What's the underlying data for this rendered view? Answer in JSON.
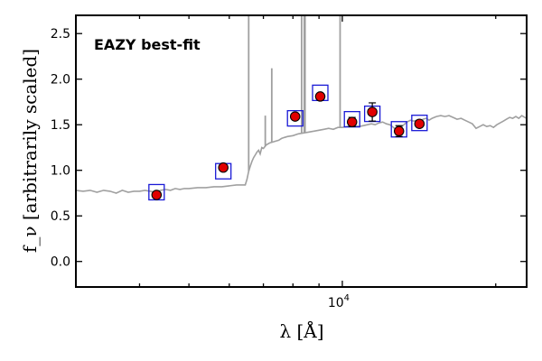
{
  "chart_data": {
    "type": "scatter",
    "title": "",
    "xlabel": "λ [Å]",
    "ylabel": "f_ν [arbitrarily scaled]",
    "xscale": "log",
    "xlim": [
      3000,
      23000
    ],
    "ylim": [
      -0.28,
      2.7
    ],
    "yticks": [
      0.0,
      0.5,
      1.0,
      1.5,
      2.0,
      2.5
    ],
    "ytick_labels": [
      "0.0",
      "0.5",
      "1.0",
      "1.5",
      "2.0",
      "2.5"
    ],
    "xtick_labels": [
      {
        "value": 10000,
        "base": "10",
        "exp": "4"
      }
    ],
    "grid": false,
    "annotation": "EAZY best-fit",
    "colors": {
      "template": "#a0a0a0",
      "observed": "#e00000",
      "model_box": "#1a1ad6",
      "annotation": "#ff0000"
    },
    "observed": [
      {
        "x": 4320,
        "y": 0.73,
        "err": 0.0
      },
      {
        "x": 5840,
        "y": 1.03,
        "err": 0.0
      },
      {
        "x": 8080,
        "y": 1.59,
        "err": 0.0
      },
      {
        "x": 9050,
        "y": 1.81,
        "err": 0.0
      },
      {
        "x": 10450,
        "y": 1.53,
        "err": 0.05
      },
      {
        "x": 11450,
        "y": 1.64,
        "err": 0.1
      },
      {
        "x": 12920,
        "y": 1.43,
        "err": 0.06
      },
      {
        "x": 14170,
        "y": 1.51,
        "err": 0.0
      }
    ],
    "model": [
      {
        "x": 4320,
        "y": 0.76
      },
      {
        "x": 5840,
        "y": 0.99
      },
      {
        "x": 8080,
        "y": 1.57
      },
      {
        "x": 9050,
        "y": 1.85
      },
      {
        "x": 10450,
        "y": 1.56
      },
      {
        "x": 11450,
        "y": 1.62
      },
      {
        "x": 12920,
        "y": 1.45
      },
      {
        "x": 14170,
        "y": 1.52
      }
    ],
    "template": [
      [
        3000,
        0.78
      ],
      [
        3100,
        0.77
      ],
      [
        3200,
        0.78
      ],
      [
        3300,
        0.76
      ],
      [
        3400,
        0.78
      ],
      [
        3500,
        0.77
      ],
      [
        3600,
        0.75
      ],
      [
        3700,
        0.78
      ],
      [
        3800,
        0.76
      ],
      [
        3900,
        0.77
      ],
      [
        4000,
        0.77
      ],
      [
        4100,
        0.78
      ],
      [
        4200,
        0.77
      ],
      [
        4300,
        0.76
      ],
      [
        4400,
        0.78
      ],
      [
        4500,
        0.79
      ],
      [
        4600,
        0.78
      ],
      [
        4700,
        0.8
      ],
      [
        4800,
        0.79
      ],
      [
        4900,
        0.8
      ],
      [
        5000,
        0.8
      ],
      [
        5200,
        0.81
      ],
      [
        5400,
        0.81
      ],
      [
        5600,
        0.82
      ],
      [
        5800,
        0.82
      ],
      [
        6000,
        0.83
      ],
      [
        6200,
        0.84
      ],
      [
        6400,
        0.84
      ],
      [
        6450,
        0.84
      ],
      [
        6500,
        0.9
      ],
      [
        6550,
        0.99
      ],
      [
        6600,
        1.05
      ],
      [
        6650,
        1.1
      ],
      [
        6700,
        1.14
      ],
      [
        6750,
        1.17
      ],
      [
        6800,
        1.2
      ],
      [
        6850,
        1.22
      ],
      [
        6900,
        1.18
      ],
      [
        6950,
        1.25
      ],
      [
        7000,
        1.24
      ],
      [
        7050,
        1.26
      ],
      [
        7100,
        1.28
      ],
      [
        7200,
        1.3
      ],
      [
        7300,
        1.31
      ],
      [
        7400,
        1.32
      ],
      [
        7500,
        1.33
      ],
      [
        7600,
        1.35
      ],
      [
        7700,
        1.36
      ],
      [
        7800,
        1.37
      ],
      [
        8000,
        1.38
      ],
      [
        8200,
        1.4
      ],
      [
        8400,
        1.41
      ],
      [
        8600,
        1.42
      ],
      [
        8800,
        1.43
      ],
      [
        9000,
        1.44
      ],
      [
        9200,
        1.45
      ],
      [
        9400,
        1.46
      ],
      [
        9600,
        1.45
      ],
      [
        9800,
        1.47
      ],
      [
        10000,
        1.47
      ],
      [
        10200,
        1.48
      ],
      [
        10400,
        1.49
      ],
      [
        10600,
        1.49
      ],
      [
        10800,
        1.48
      ],
      [
        11000,
        1.49
      ],
      [
        11200,
        1.5
      ],
      [
        11400,
        1.51
      ],
      [
        11600,
        1.5
      ],
      [
        11800,
        1.52
      ],
      [
        12000,
        1.53
      ],
      [
        12200,
        1.51
      ],
      [
        12400,
        1.5
      ],
      [
        12600,
        1.47
      ],
      [
        12800,
        1.44
      ],
      [
        13000,
        1.46
      ],
      [
        13200,
        1.5
      ],
      [
        13400,
        1.53
      ],
      [
        13600,
        1.55
      ],
      [
        13800,
        1.54
      ],
      [
        14000,
        1.55
      ],
      [
        14200,
        1.53
      ],
      [
        14400,
        1.56
      ],
      [
        14600,
        1.57
      ],
      [
        14800,
        1.55
      ],
      [
        15000,
        1.57
      ],
      [
        15300,
        1.59
      ],
      [
        15600,
        1.6
      ],
      [
        15900,
        1.59
      ],
      [
        16200,
        1.6
      ],
      [
        16500,
        1.58
      ],
      [
        16800,
        1.56
      ],
      [
        17100,
        1.57
      ],
      [
        17400,
        1.55
      ],
      [
        17700,
        1.53
      ],
      [
        18000,
        1.51
      ],
      [
        18300,
        1.46
      ],
      [
        18600,
        1.48
      ],
      [
        18900,
        1.5
      ],
      [
        19200,
        1.48
      ],
      [
        19500,
        1.49
      ],
      [
        19800,
        1.47
      ],
      [
        20100,
        1.5
      ],
      [
        20400,
        1.52
      ],
      [
        20700,
        1.54
      ],
      [
        21000,
        1.56
      ],
      [
        21300,
        1.58
      ],
      [
        21600,
        1.57
      ],
      [
        21900,
        1.59
      ],
      [
        22200,
        1.57
      ],
      [
        22500,
        1.6
      ],
      [
        22800,
        1.58
      ],
      [
        23000,
        1.57
      ]
    ],
    "emission_lines": [
      {
        "x": 6550,
        "peak": 2.7
      },
      {
        "x": 7270,
        "peak": 2.12
      },
      {
        "x": 7060,
        "peak": 1.6
      },
      {
        "x": 8320,
        "peak": 2.7
      },
      {
        "x": 8420,
        "peak": 2.7
      },
      {
        "x": 8450,
        "peak": 2.7
      },
      {
        "x": 9900,
        "peak": 2.7
      }
    ]
  }
}
